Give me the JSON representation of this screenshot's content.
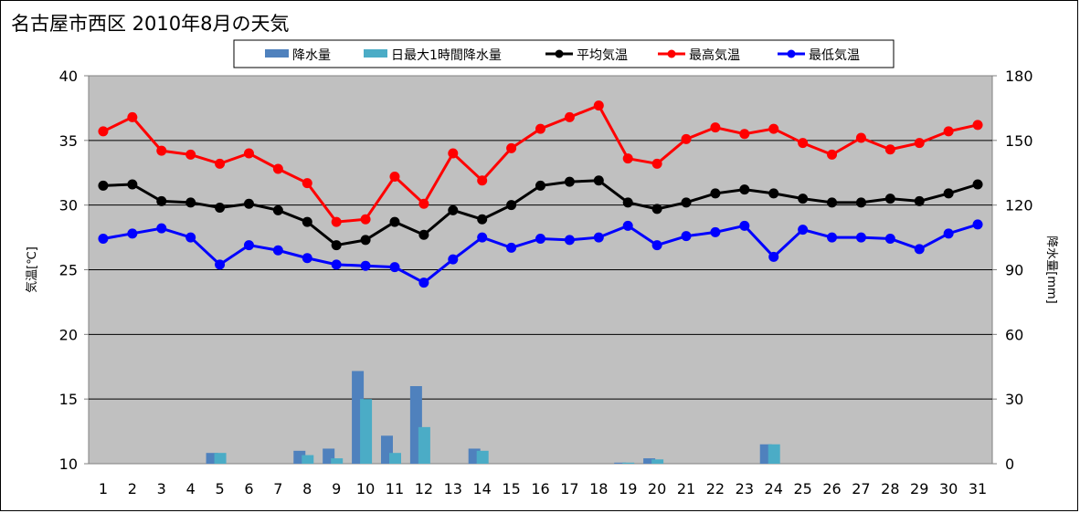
{
  "chart_data": {
    "type": "bar+line",
    "title": "名古屋市西区 2010年8月の天気",
    "categories": [
      "1",
      "2",
      "3",
      "4",
      "5",
      "6",
      "7",
      "8",
      "9",
      "10",
      "11",
      "12",
      "13",
      "14",
      "15",
      "16",
      "17",
      "18",
      "19",
      "20",
      "21",
      "22",
      "23",
      "24",
      "25",
      "26",
      "27",
      "28",
      "29",
      "30",
      "31"
    ],
    "y_left": {
      "label": "気温[℃]",
      "ylim": [
        10,
        40
      ],
      "ticks": [
        "10",
        "15",
        "20",
        "25",
        "30",
        "35",
        "40"
      ]
    },
    "y_right": {
      "label": "降水量[mm]",
      "ylim": [
        0,
        180
      ],
      "ticks": [
        "0",
        "30",
        "60",
        "90",
        "120",
        "150",
        "180"
      ]
    },
    "grid": true,
    "legend_position": "top",
    "series": [
      {
        "name": "降水量",
        "type": "bar",
        "axis": "right",
        "color": "#4f81bd",
        "values": [
          0,
          0,
          0,
          0,
          5,
          0,
          0,
          6,
          7,
          43,
          13,
          36,
          0,
          7,
          0,
          0,
          0,
          0,
          0.5,
          2.5,
          0,
          0,
          0,
          9,
          0,
          0,
          0,
          0,
          0,
          0,
          0
        ]
      },
      {
        "name": "日最大1時間降水量",
        "type": "bar",
        "axis": "right",
        "color": "#4bacc6",
        "values": [
          0,
          0,
          0,
          0,
          5,
          0,
          0,
          4,
          2.5,
          30,
          5,
          17,
          0,
          6,
          0,
          0,
          0,
          0,
          0.5,
          2,
          0,
          0,
          0,
          9,
          0,
          0,
          0,
          0,
          0,
          0,
          0
        ]
      },
      {
        "name": "平均気温",
        "type": "line",
        "axis": "left",
        "color": "#000000",
        "values": [
          31.5,
          31.6,
          30.3,
          30.2,
          29.8,
          30.1,
          29.6,
          28.7,
          26.9,
          27.3,
          28.7,
          27.7,
          29.6,
          28.9,
          30.0,
          31.5,
          31.8,
          31.9,
          30.2,
          29.7,
          30.2,
          30.9,
          31.2,
          30.9,
          30.5,
          30.2,
          30.2,
          30.5,
          30.3,
          30.9,
          31.6
        ]
      },
      {
        "name": "最高気温",
        "type": "line",
        "axis": "left",
        "color": "#ff0000",
        "values": [
          35.7,
          36.8,
          34.2,
          33.9,
          33.2,
          34.0,
          32.8,
          31.7,
          28.7,
          28.9,
          32.2,
          30.1,
          34.0,
          31.9,
          34.4,
          35.9,
          36.8,
          37.7,
          33.6,
          33.2,
          35.1,
          36.0,
          35.5,
          35.9,
          34.8,
          33.9,
          35.2,
          34.3,
          34.8,
          35.7,
          36.2
        ]
      },
      {
        "name": "最低気温",
        "type": "line",
        "axis": "left",
        "color": "#0000ff",
        "values": [
          27.4,
          27.8,
          28.2,
          27.5,
          25.4,
          26.9,
          26.5,
          25.9,
          25.4,
          25.3,
          25.2,
          24.0,
          25.8,
          27.5,
          26.7,
          27.4,
          27.3,
          27.5,
          28.4,
          26.9,
          27.6,
          27.9,
          28.4,
          26.0,
          28.1,
          27.5,
          27.5,
          27.4,
          26.6,
          27.8,
          28.5
        ]
      }
    ]
  }
}
